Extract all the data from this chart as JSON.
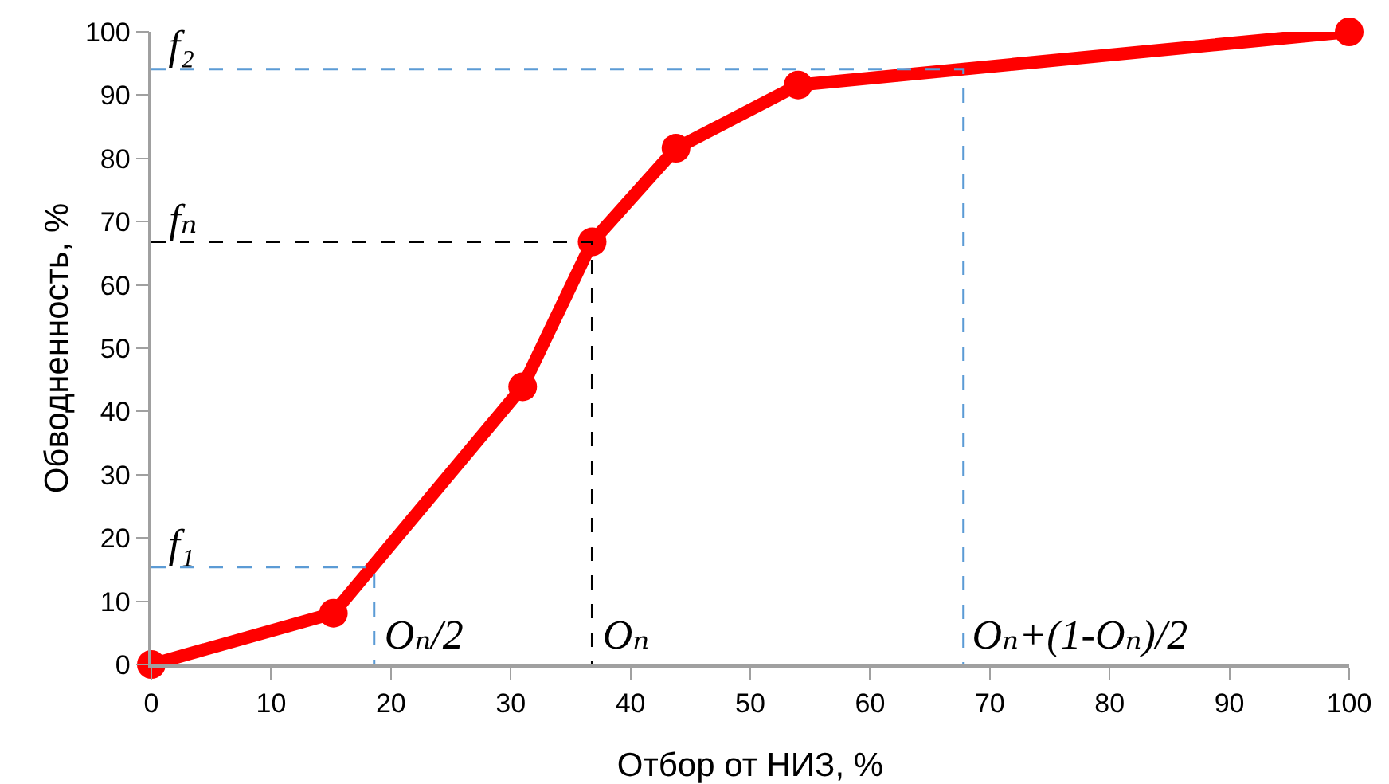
{
  "chart_data": {
    "type": "line",
    "xlabel": "Отбор от НИЗ, %",
    "ylabel": "Обводненность, %",
    "xlim": [
      0,
      100
    ],
    "xticks": [
      0,
      10,
      20,
      30,
      40,
      50,
      60,
      70,
      80,
      90,
      100
    ],
    "ylim": [
      0,
      100
    ],
    "yticks": [
      0,
      10,
      20,
      30,
      40,
      50,
      60,
      70,
      80,
      90,
      100
    ],
    "grid": false,
    "marker": "circle",
    "line_style": "solid",
    "series": [
      {
        "color": "#ff0000",
        "x": [
          0,
          15.2,
          31,
          36.8,
          43.8,
          54,
          100
        ],
        "values": [
          0,
          8.1,
          43.9,
          66.8,
          81.6,
          91.6,
          100
        ]
      },
      {
        "color": "#5b9bd5",
        "marker": "none",
        "line_style": "dashed",
        "x": [
          0,
          18.6,
          18.6
        ],
        "values": [
          15.4,
          15.4,
          0
        ]
      },
      {
        "color": "#000000",
        "marker": "none",
        "line_style": "dashed",
        "x": [
          0,
          36.8,
          36.8
        ],
        "values": [
          66.8,
          66.8,
          0
        ]
      },
      {
        "color": "#5b9bd5",
        "marker": "none",
        "line_style": "dashed",
        "x": [
          0,
          67.8,
          67.8
        ],
        "values": [
          94.1,
          94.1,
          0
        ]
      }
    ],
    "annotations": [
      {
        "text": "f₁",
        "x": 0,
        "y": 15.4
      },
      {
        "text": "fₙ",
        "x": 0,
        "y": 66.8
      },
      {
        "text": "f₂",
        "x": 0,
        "y": 94.1
      },
      {
        "text": "Oₙ/2",
        "x": 18.6,
        "y": 0
      },
      {
        "text": "Oₙ",
        "x": 36.8,
        "y": 0
      },
      {
        "text": "Oₙ+(1-Oₙ)/2",
        "x": 67.8,
        "y": 0
      }
    ]
  }
}
